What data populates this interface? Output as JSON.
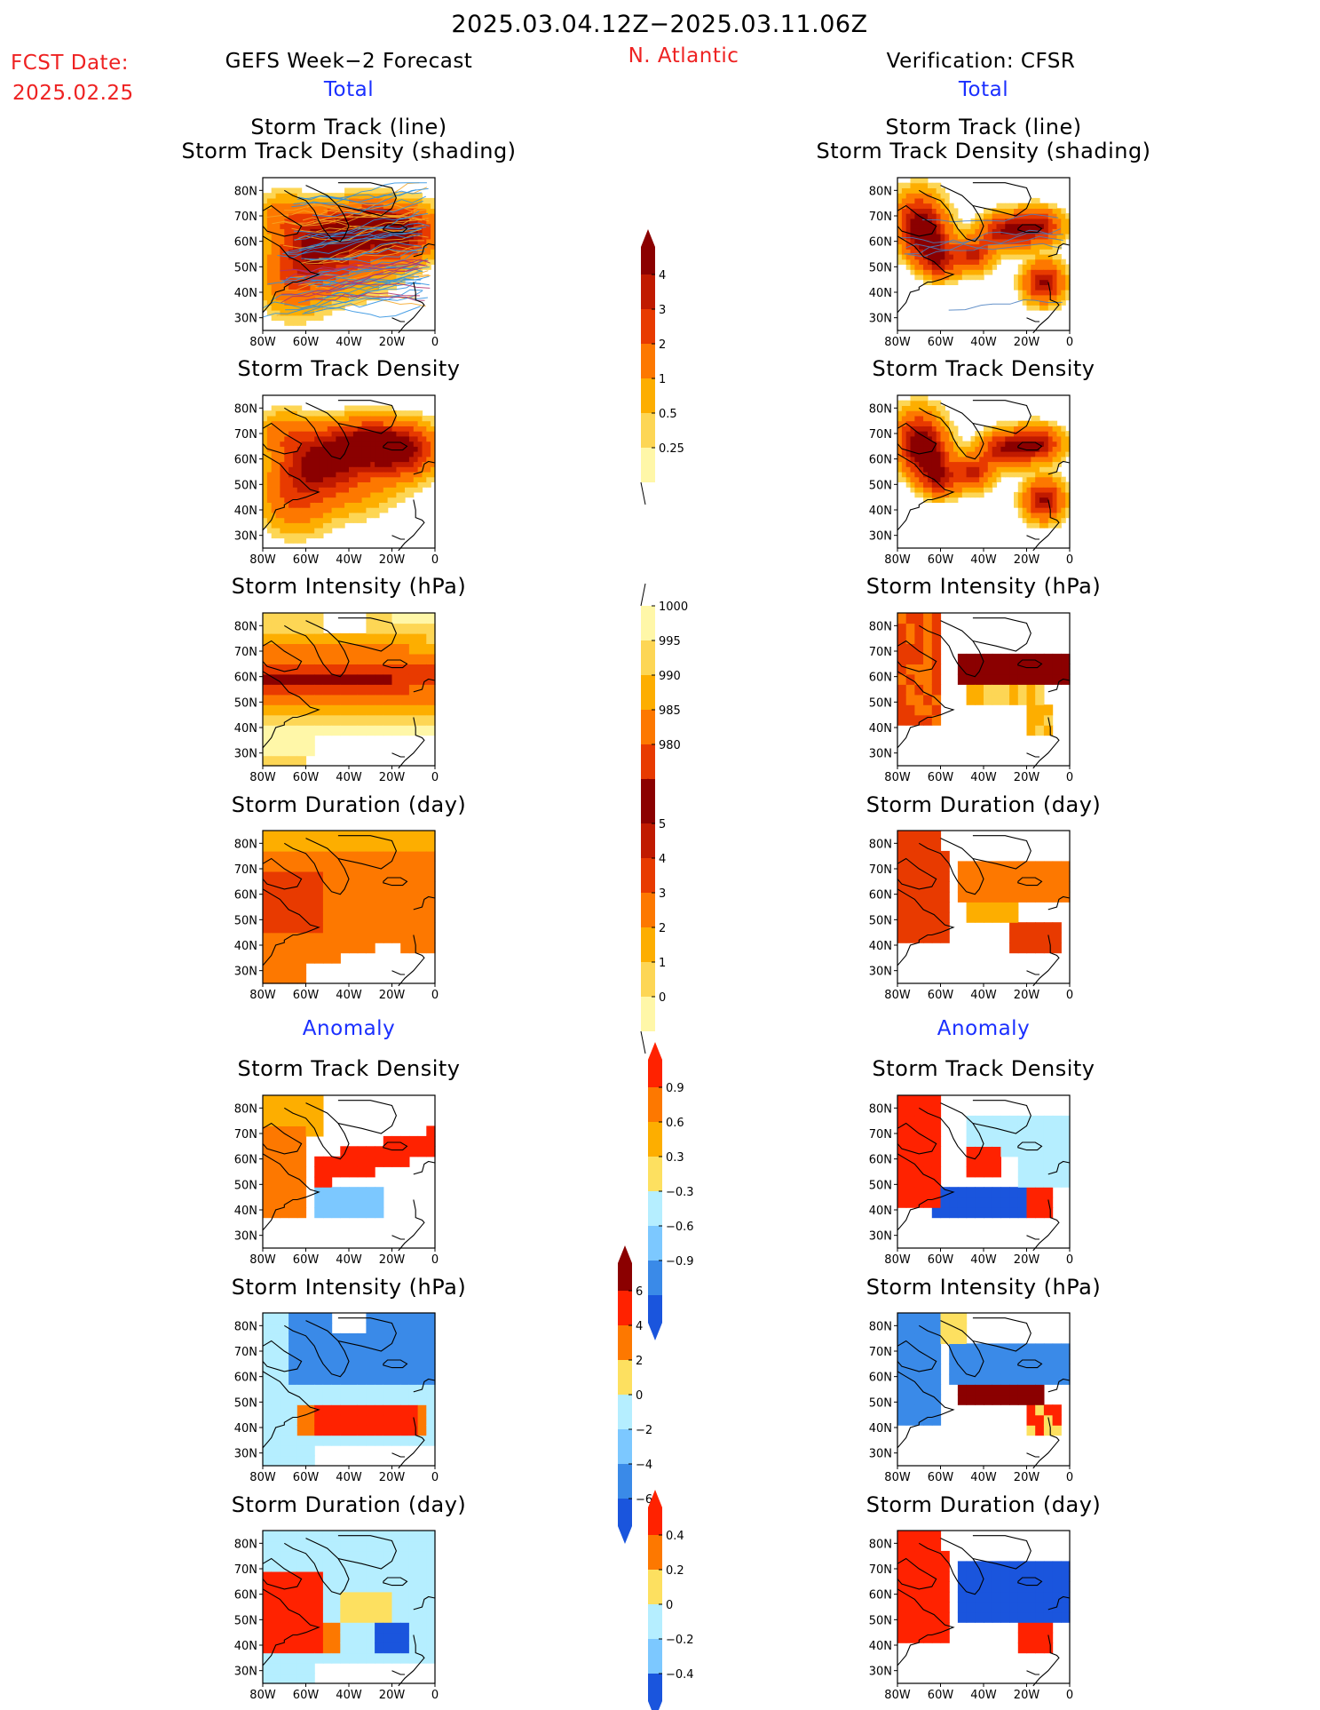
{
  "header": {
    "period": "2025.03.04.12Z−2025.03.11.06Z",
    "fcst_label": "FCST Date:",
    "fcst_date": "2025.02.25",
    "left_title": "GEFS Week−2 Forecast",
    "region": "N. Atlantic",
    "right_title": "Verification: CFSR",
    "total_left": "Total",
    "total_right": "Total",
    "anomaly_left": "Anomaly",
    "anomaly_right": "Anomaly"
  },
  "panel_titles": {
    "track_line": "Storm Track (line)",
    "track_shading": "Storm Track Density (shading)",
    "density": "Storm Track Density",
    "intensity": "Storm Intensity (hPa)",
    "duration": "Storm Duration (day)"
  },
  "chart_data": [
    {
      "type": "heatmap",
      "map_axes": {
        "x_ticks": [
          "80W",
          "60W",
          "40W",
          "20W",
          "0"
        ],
        "y_ticks": [
          "80N",
          "70N",
          "60N",
          "50N",
          "40N",
          "30N"
        ],
        "xlim": [
          -80,
          0
        ],
        "ylim": [
          25,
          85
        ]
      }
    },
    {
      "type": "heatmap",
      "name": "density_colorbar",
      "levels": [
        "0.25",
        "0.5",
        "1",
        "2",
        "3",
        "4"
      ],
      "colors": [
        "#fff7a8",
        "#fdd655",
        "#fdae00",
        "#fd7800",
        "#e83a00",
        "#c01a00",
        "#8b0000"
      ]
    },
    {
      "type": "heatmap",
      "name": "intensity_colorbar",
      "levels": [
        "1000",
        "995",
        "990",
        "985",
        "980"
      ],
      "colors": [
        "#fff7a8",
        "#fdd655",
        "#fdae00",
        "#fd7800",
        "#e83a00",
        "#8b0000"
      ]
    },
    {
      "type": "heatmap",
      "name": "duration_colorbar",
      "levels": [
        "5",
        "4",
        "3",
        "2",
        "1",
        "0"
      ],
      "colors": [
        "#8b0000",
        "#c01a00",
        "#e83a00",
        "#fd7800",
        "#fdae00",
        "#fdd655",
        "#fff7a8"
      ]
    },
    {
      "type": "heatmap",
      "name": "density_anomaly_colorbar",
      "levels": [
        "0.9",
        "0.6",
        "0.3",
        "−0.3",
        "−0.6",
        "−0.9"
      ],
      "colors": [
        "#ff2200",
        "#fd7800",
        "#fdae00",
        "#fde060",
        "#ffffff",
        "#b5eeff",
        "#7cc8ff",
        "#3a8ae8",
        "#1a55dd"
      ]
    },
    {
      "type": "heatmap",
      "name": "intensity_anomaly_colorbar",
      "levels": [
        "6",
        "4",
        "2",
        "0",
        "−2",
        "−4",
        "−6"
      ],
      "colors": [
        "#8b0000",
        "#ff2200",
        "#fd7800",
        "#fde060",
        "#b5eeff",
        "#7cc8ff",
        "#3a8ae8",
        "#1a55dd"
      ]
    },
    {
      "type": "heatmap",
      "name": "duration_anomaly_colorbar",
      "levels": [
        "0.4",
        "0.2",
        "0",
        "−0.2",
        "−0.4"
      ],
      "colors": [
        "#ff2200",
        "#fd7800",
        "#fde060",
        "#b5eeff",
        "#7cc8ff",
        "#1a55dd"
      ]
    }
  ]
}
